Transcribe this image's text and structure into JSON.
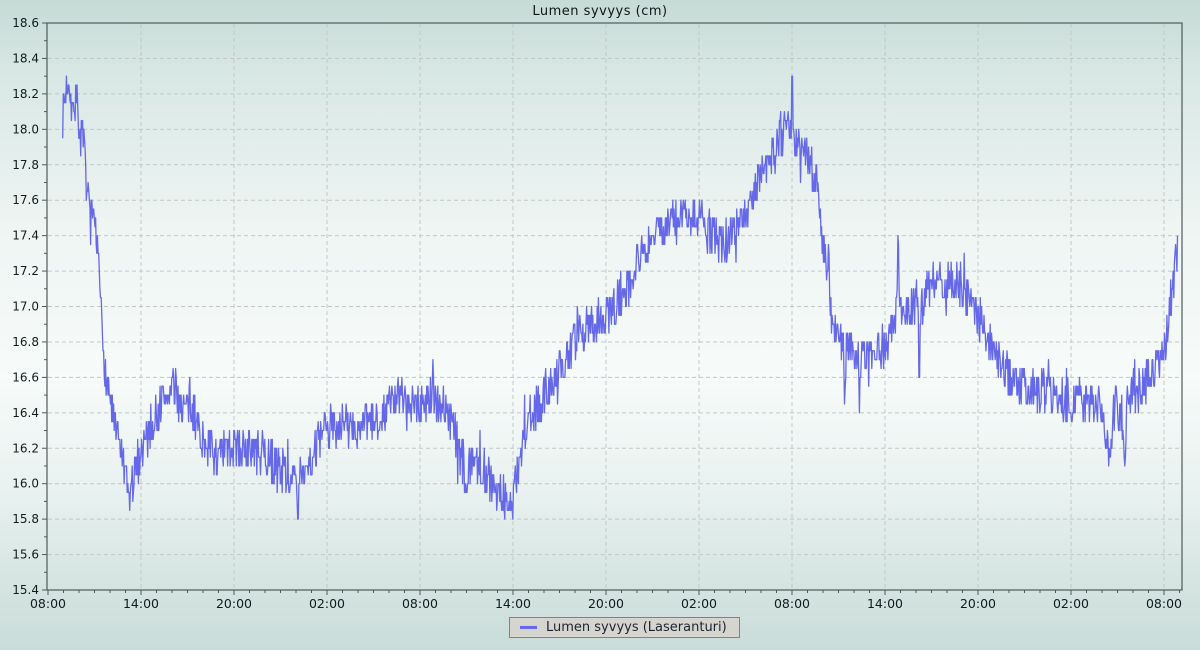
{
  "chart_data": {
    "type": "line",
    "title": "Lumen syvyys (cm)",
    "legend_position": "bottom-center",
    "grid": "dashed, major only",
    "x_axis": {
      "kind": "time",
      "span_hours": 73,
      "major_tick_every_hours": 6,
      "minor_tick_every_hours": 1,
      "tick_labels": [
        "08:00",
        "14:00",
        "20:00",
        "02:00",
        "08:00",
        "14:00",
        "20:00",
        "02:00",
        "08:00",
        "14:00",
        "20:00",
        "02:00",
        "08:00"
      ]
    },
    "y_axis": {
      "min": 15.4,
      "max": 18.6,
      "major_step": 0.2,
      "minor_step": 0.1,
      "tick_labels": [
        "18.6",
        "18.4",
        "18.2",
        "18.0",
        "17.8",
        "17.6",
        "17.4",
        "17.2",
        "17.0",
        "16.8",
        "16.6",
        "16.4",
        "16.2",
        "16.0",
        "15.8",
        "15.6",
        "15.4"
      ]
    },
    "series": [
      {
        "name": "Lumen syvyys (Laseranturi)",
        "color": "#6468e9",
        "noise_amplitude_cm": 0.12,
        "quantize_cm": 0.05,
        "value_range_cm": [
          15.7,
          18.3
        ],
        "points_hours_vs_cm": [
          [
            0.95,
            18.05
          ],
          [
            1.1,
            18.2
          ],
          [
            1.35,
            18.3
          ],
          [
            1.6,
            18.1
          ],
          [
            1.8,
            18.2
          ],
          [
            2.05,
            18.0
          ],
          [
            2.3,
            17.9
          ],
          [
            2.6,
            17.6
          ],
          [
            2.9,
            17.45
          ],
          [
            3.2,
            17.3
          ],
          [
            3.45,
            16.95
          ],
          [
            3.7,
            16.6
          ],
          [
            4.0,
            16.5
          ],
          [
            4.3,
            16.3
          ],
          [
            4.7,
            16.2
          ],
          [
            5.2,
            15.9
          ],
          [
            5.6,
            16.05
          ],
          [
            6.0,
            16.2
          ],
          [
            6.5,
            16.3
          ],
          [
            7.3,
            16.45
          ],
          [
            8.0,
            16.55
          ],
          [
            8.7,
            16.45
          ],
          [
            9.3,
            16.4
          ],
          [
            10.0,
            16.25
          ],
          [
            11.0,
            16.15
          ],
          [
            12.0,
            16.2
          ],
          [
            13.0,
            16.2
          ],
          [
            14.0,
            16.15
          ],
          [
            15.0,
            16.1
          ],
          [
            16.0,
            16.0
          ],
          [
            16.12,
            15.7
          ],
          [
            16.2,
            16.05
          ],
          [
            17.0,
            16.15
          ],
          [
            18.0,
            16.3
          ],
          [
            19.0,
            16.35
          ],
          [
            20.0,
            16.3
          ],
          [
            21.0,
            16.35
          ],
          [
            22.0,
            16.45
          ],
          [
            23.0,
            16.5
          ],
          [
            24.0,
            16.45
          ],
          [
            24.78,
            16.5
          ],
          [
            24.85,
            16.7
          ],
          [
            24.92,
            16.45
          ],
          [
            25.5,
            16.45
          ],
          [
            26.0,
            16.35
          ],
          [
            26.8,
            16.1
          ],
          [
            27.0,
            15.95
          ],
          [
            27.2,
            16.1
          ],
          [
            27.6,
            16.15
          ],
          [
            28.0,
            16.1
          ],
          [
            28.6,
            16.0
          ],
          [
            29.3,
            15.95
          ],
          [
            29.7,
            15.85
          ],
          [
            30.0,
            15.9
          ],
          [
            30.4,
            16.15
          ],
          [
            31.0,
            16.35
          ],
          [
            32.0,
            16.5
          ],
          [
            33.0,
            16.65
          ],
          [
            34.0,
            16.8
          ],
          [
            35.0,
            16.9
          ],
          [
            36.0,
            16.95
          ],
          [
            37.0,
            17.05
          ],
          [
            38.0,
            17.25
          ],
          [
            39.0,
            17.4
          ],
          [
            40.0,
            17.45
          ],
          [
            41.0,
            17.5
          ],
          [
            42.0,
            17.5
          ],
          [
            42.8,
            17.4
          ],
          [
            43.5,
            17.35
          ],
          [
            44.0,
            17.4
          ],
          [
            45.0,
            17.55
          ],
          [
            46.0,
            17.75
          ],
          [
            47.0,
            17.9
          ],
          [
            47.6,
            18.0
          ],
          [
            47.95,
            18.05
          ],
          [
            48.02,
            18.3
          ],
          [
            48.1,
            17.95
          ],
          [
            48.5,
            17.9
          ],
          [
            49.0,
            17.85
          ],
          [
            49.6,
            17.7
          ],
          [
            50.0,
            17.35
          ],
          [
            50.3,
            17.15
          ],
          [
            50.38,
            17.5
          ],
          [
            50.45,
            17.0
          ],
          [
            51.0,
            16.8
          ],
          [
            51.35,
            16.75
          ],
          [
            51.42,
            16.4
          ],
          [
            51.5,
            16.8
          ],
          [
            52.0,
            16.75
          ],
          [
            52.3,
            16.7
          ],
          [
            52.37,
            16.4
          ],
          [
            52.45,
            16.75
          ],
          [
            53.0,
            16.7
          ],
          [
            54.0,
            16.75
          ],
          [
            54.78,
            17.0
          ],
          [
            54.85,
            17.6
          ],
          [
            54.92,
            16.95
          ],
          [
            55.5,
            16.95
          ],
          [
            56.0,
            17.05
          ],
          [
            56.15,
            16.95
          ],
          [
            56.22,
            16.5
          ],
          [
            56.3,
            17.0
          ],
          [
            57.0,
            17.15
          ],
          [
            58.0,
            17.15
          ],
          [
            59.0,
            17.1
          ],
          [
            60.0,
            16.95
          ],
          [
            61.0,
            16.75
          ],
          [
            62.0,
            16.6
          ],
          [
            63.0,
            16.55
          ],
          [
            64.0,
            16.55
          ],
          [
            65.0,
            16.5
          ],
          [
            66.0,
            16.45
          ],
          [
            67.0,
            16.45
          ],
          [
            68.0,
            16.4
          ],
          [
            68.62,
            16.12
          ],
          [
            68.7,
            16.4
          ],
          [
            69.0,
            16.45
          ],
          [
            69.52,
            16.15
          ],
          [
            69.6,
            16.45
          ],
          [
            70.0,
            16.5
          ],
          [
            71.0,
            16.6
          ],
          [
            72.0,
            16.75
          ],
          [
            72.5,
            17.0
          ],
          [
            72.9,
            17.4
          ]
        ]
      }
    ]
  },
  "legend": {
    "label": "Lumen syvyys (Laseranturi)"
  },
  "colors": {
    "line": "#6468e9",
    "grid": "#c2c8c8",
    "axis": "#4e5a59",
    "text": "#111d1d",
    "legend_bg": "#d5d4cf"
  }
}
